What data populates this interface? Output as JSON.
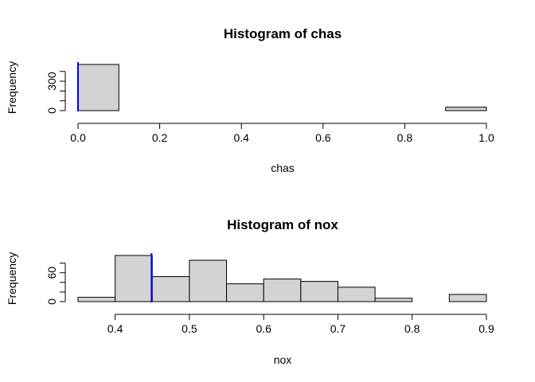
{
  "chart_data": [
    {
      "type": "bar",
      "title": "Histogram of chas",
      "xlabel": "chas",
      "ylabel": "Frequency",
      "xlim": [
        0.0,
        1.0
      ],
      "ylim": [
        0,
        471
      ],
      "x_ticks": [
        "0.0",
        "0.2",
        "0.4",
        "0.6",
        "0.8",
        "1.0"
      ],
      "y_ticks": [
        "0",
        "300"
      ],
      "bins": [
        {
          "x0": 0.0,
          "x1": 0.1,
          "count": 471
        },
        {
          "x0": 0.1,
          "x1": 0.2,
          "count": 0
        },
        {
          "x0": 0.2,
          "x1": 0.3,
          "count": 0
        },
        {
          "x0": 0.3,
          "x1": 0.4,
          "count": 0
        },
        {
          "x0": 0.4,
          "x1": 0.5,
          "count": 0
        },
        {
          "x0": 0.5,
          "x1": 0.6,
          "count": 0
        },
        {
          "x0": 0.6,
          "x1": 0.7,
          "count": 0
        },
        {
          "x0": 0.7,
          "x1": 0.8,
          "count": 0
        },
        {
          "x0": 0.8,
          "x1": 0.9,
          "count": 0
        },
        {
          "x0": 0.9,
          "x1": 1.0,
          "count": 35
        }
      ],
      "reference_line": {
        "x": 0.0,
        "color": "#0000ff"
      },
      "bar_fill": "#d3d3d3",
      "grid": false
    },
    {
      "type": "bar",
      "title": "Histogram of nox",
      "xlabel": "nox",
      "ylabel": "Frequency",
      "xlim": [
        0.35,
        0.9
      ],
      "ylim": [
        0,
        96
      ],
      "x_ticks": [
        "0.4",
        "0.5",
        "0.6",
        "0.7",
        "0.8",
        "0.9"
      ],
      "y_ticks": [
        "0",
        "60"
      ],
      "bins": [
        {
          "x0": 0.35,
          "x1": 0.4,
          "count": 9
        },
        {
          "x0": 0.4,
          "x1": 0.45,
          "count": 96
        },
        {
          "x0": 0.45,
          "x1": 0.5,
          "count": 52
        },
        {
          "x0": 0.5,
          "x1": 0.55,
          "count": 86
        },
        {
          "x0": 0.55,
          "x1": 0.6,
          "count": 37
        },
        {
          "x0": 0.6,
          "x1": 0.65,
          "count": 47
        },
        {
          "x0": 0.65,
          "x1": 0.7,
          "count": 42
        },
        {
          "x0": 0.7,
          "x1": 0.75,
          "count": 30
        },
        {
          "x0": 0.75,
          "x1": 0.8,
          "count": 7
        },
        {
          "x0": 0.8,
          "x1": 0.85,
          "count": 0
        },
        {
          "x0": 0.85,
          "x1": 0.9,
          "count": 15
        }
      ],
      "reference_line": {
        "x": 0.449,
        "color": "#0000ff"
      },
      "bar_fill": "#d3d3d3",
      "grid": false
    }
  ]
}
